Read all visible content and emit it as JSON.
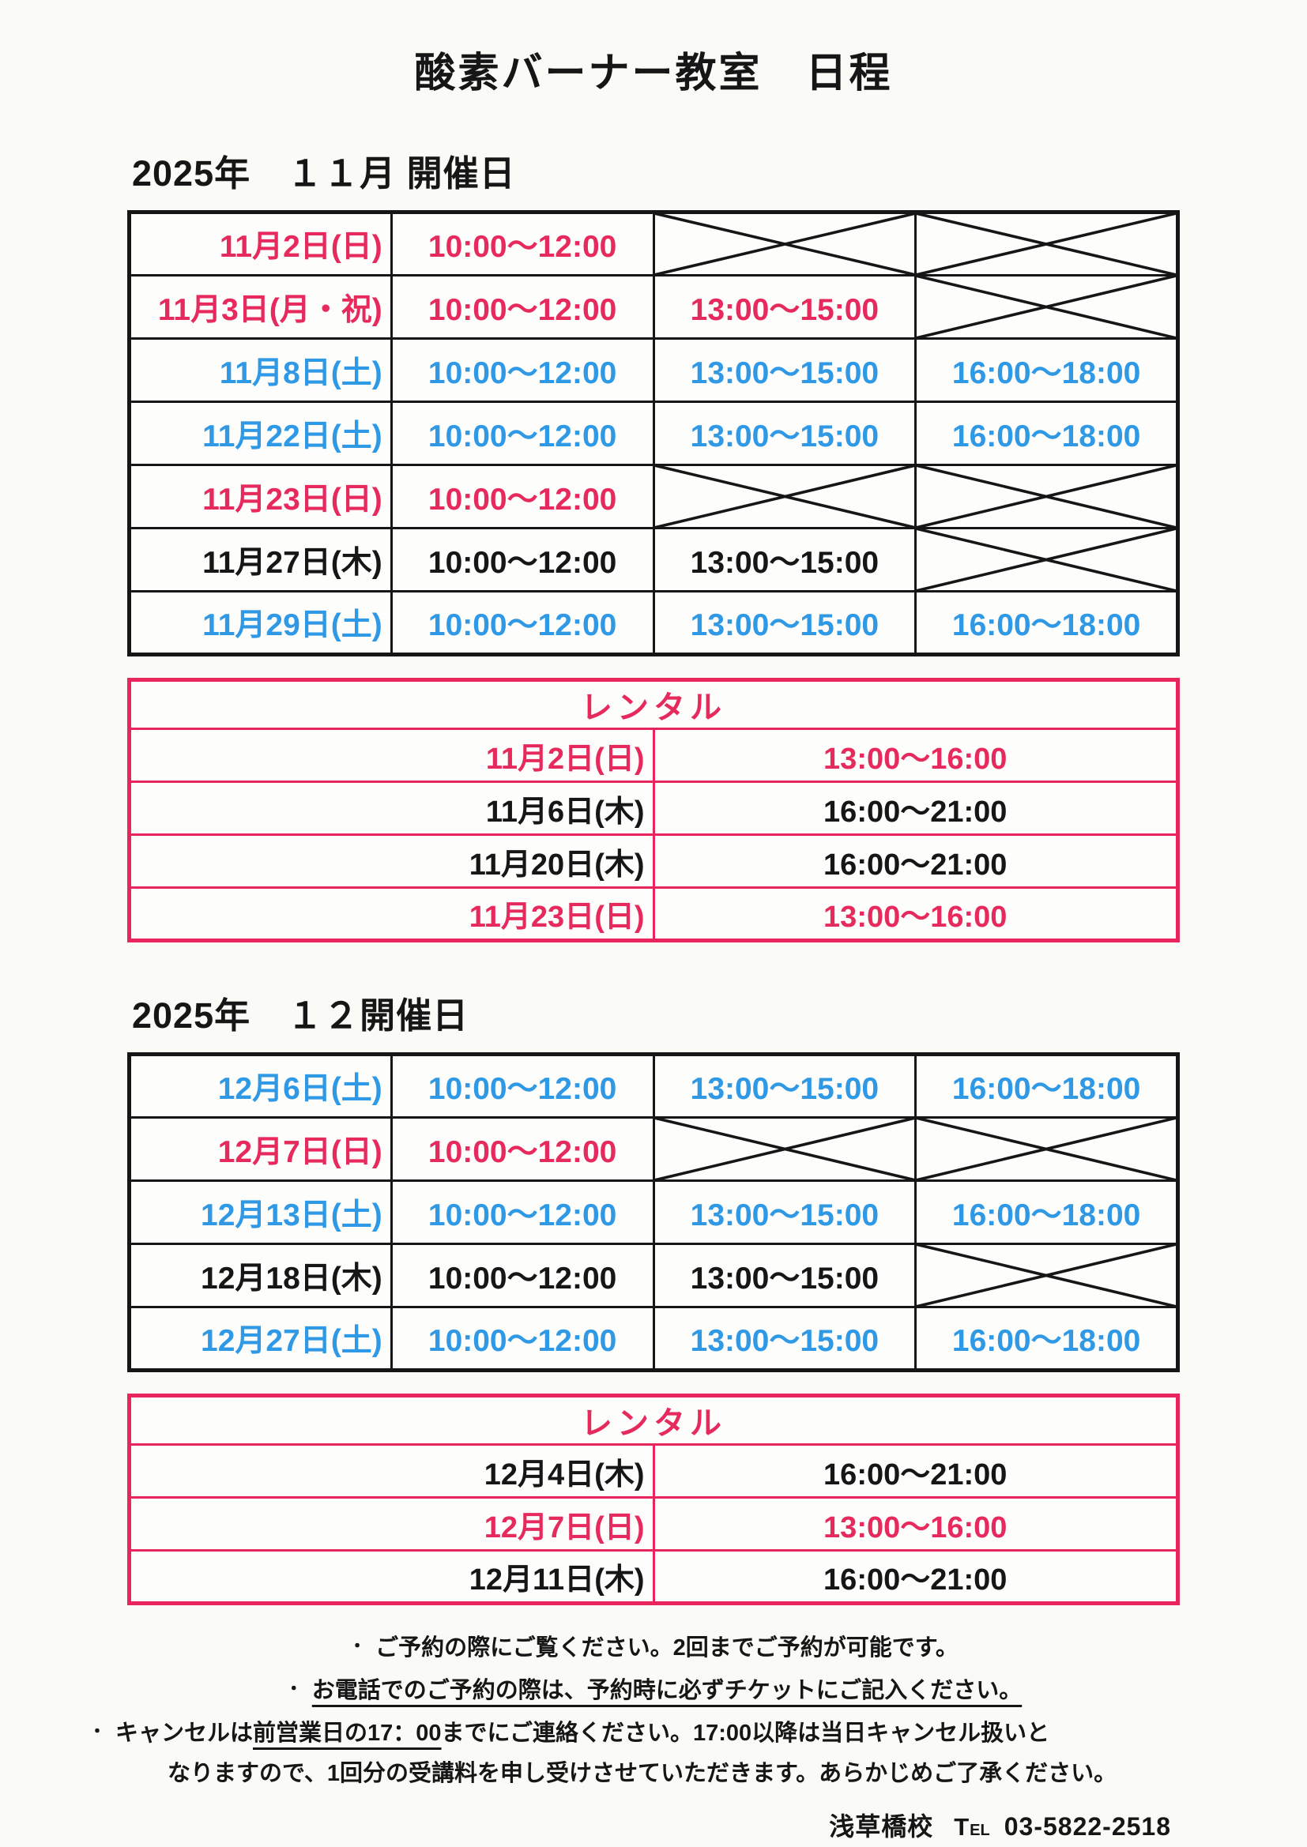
{
  "title": "酸素バーナー教室　日程",
  "colors": {
    "pink": "#e72a5e",
    "blue": "#2f99e5",
    "black": "#161616",
    "rental_border": "#e8255c"
  },
  "sections": [
    {
      "heading": "2025年　１１月 開催日",
      "schedule_rows": [
        {
          "date": "11月2日(日)",
          "color": "pink",
          "slots": [
            {
              "type": "time",
              "text": "10:00～12:00",
              "color": "pink"
            },
            {
              "type": "cross"
            },
            {
              "type": "cross"
            }
          ]
        },
        {
          "date": "11月3日(月・祝)",
          "color": "pink",
          "slots": [
            {
              "type": "time",
              "text": "10:00～12:00",
              "color": "pink"
            },
            {
              "type": "time",
              "text": "13:00～15:00",
              "color": "pink"
            },
            {
              "type": "cross"
            }
          ]
        },
        {
          "date": "11月8日(土)",
          "color": "blue",
          "slots": [
            {
              "type": "time",
              "text": "10:00～12:00",
              "color": "blue"
            },
            {
              "type": "time",
              "text": "13:00～15:00",
              "color": "blue"
            },
            {
              "type": "time",
              "text": "16:00～18:00",
              "color": "blue"
            }
          ]
        },
        {
          "date": "11月22日(土)",
          "color": "blue",
          "slots": [
            {
              "type": "time",
              "text": "10:00～12:00",
              "color": "blue"
            },
            {
              "type": "time",
              "text": "13:00～15:00",
              "color": "blue"
            },
            {
              "type": "time",
              "text": "16:00～18:00",
              "color": "blue"
            }
          ]
        },
        {
          "date": "11月23日(日)",
          "color": "pink",
          "slots": [
            {
              "type": "time",
              "text": "10:00～12:00",
              "color": "pink"
            },
            {
              "type": "cross"
            },
            {
              "type": "cross"
            }
          ]
        },
        {
          "date": "11月27日(木)",
          "color": "black",
          "slots": [
            {
              "type": "time",
              "text": "10:00～12:00",
              "color": "black"
            },
            {
              "type": "time",
              "text": "13:00～15:00",
              "color": "black"
            },
            {
              "type": "cross"
            }
          ]
        },
        {
          "date": "11月29日(土)",
          "color": "blue",
          "slots": [
            {
              "type": "time",
              "text": "10:00～12:00",
              "color": "blue"
            },
            {
              "type": "time",
              "text": "13:00～15:00",
              "color": "blue"
            },
            {
              "type": "time",
              "text": "16:00～18:00",
              "color": "blue"
            }
          ]
        }
      ],
      "rental": {
        "title": "レンタル",
        "rows": [
          {
            "date": "11月2日(日)",
            "time": "13:00～16:00",
            "color": "pink"
          },
          {
            "date": "11月6日(木)",
            "time": "16:00～21:00",
            "color": "black"
          },
          {
            "date": "11月20日(木)",
            "time": "16:00～21:00",
            "color": "black"
          },
          {
            "date": "11月23日(日)",
            "time": "13:00～16:00",
            "color": "pink"
          }
        ]
      }
    },
    {
      "heading": "2025年　１２開催日",
      "schedule_rows": [
        {
          "date": "12月6日(土)",
          "color": "blue",
          "slots": [
            {
              "type": "time",
              "text": "10:00～12:00",
              "color": "blue"
            },
            {
              "type": "time",
              "text": "13:00～15:00",
              "color": "blue"
            },
            {
              "type": "time",
              "text": "16:00～18:00",
              "color": "blue"
            }
          ]
        },
        {
          "date": "12月7日(日)",
          "color": "pink",
          "slots": [
            {
              "type": "time",
              "text": "10:00～12:00",
              "color": "pink"
            },
            {
              "type": "cross"
            },
            {
              "type": "cross"
            }
          ]
        },
        {
          "date": "12月13日(土)",
          "color": "blue",
          "slots": [
            {
              "type": "time",
              "text": "10:00～12:00",
              "color": "blue"
            },
            {
              "type": "time",
              "text": "13:00～15:00",
              "color": "blue"
            },
            {
              "type": "time",
              "text": "16:00～18:00",
              "color": "blue"
            }
          ]
        },
        {
          "date": "12月18日(木)",
          "color": "black",
          "slots": [
            {
              "type": "time",
              "text": "10:00～12:00",
              "color": "black"
            },
            {
              "type": "time",
              "text": "13:00～15:00",
              "color": "black"
            },
            {
              "type": "cross"
            }
          ]
        },
        {
          "date": "12月27日(土)",
          "color": "blue",
          "slots": [
            {
              "type": "time",
              "text": "10:00～12:00",
              "color": "blue"
            },
            {
              "type": "time",
              "text": "13:00～15:00",
              "color": "blue"
            },
            {
              "type": "time",
              "text": "16:00～18:00",
              "color": "blue"
            }
          ]
        }
      ],
      "rental": {
        "title": "レンタル",
        "rows": [
          {
            "date": "12月4日(木)",
            "time": "16:00～21:00",
            "color": "black"
          },
          {
            "date": "12月7日(日)",
            "time": "13:00～16:00",
            "color": "pink"
          },
          {
            "date": "12月11日(木)",
            "time": "16:00～21:00",
            "color": "black"
          }
        ]
      }
    }
  ],
  "notes": [
    {
      "layout": "center",
      "bullet": "・",
      "segments": [
        {
          "text": "ご予約の際にご覧ください。2回までご予約が可能です。",
          "underline": false
        }
      ]
    },
    {
      "layout": "center",
      "bullet": "・",
      "segments": [
        {
          "text": "お電話でのご予約の際は、予約時に必ずチケットにご記入ください。",
          "underline": true
        }
      ]
    },
    {
      "layout": "left",
      "bullet": "・",
      "segments": [
        {
          "text": "キャンセルは",
          "underline": false
        },
        {
          "text": "前営業日の17：00",
          "underline": true
        },
        {
          "text": "までにご連絡ください。17:00以降は当日キャンセル扱いと",
          "underline": false
        }
      ]
    },
    {
      "layout": "left-indent",
      "bullet": "",
      "segments": [
        {
          "text": "なりますので、1回分の受講料を申し受けさせていただきます。あらかじめご了承ください。",
          "underline": false
        }
      ]
    }
  ],
  "footer": {
    "school": "浅草橋校",
    "tel_label": "TEL",
    "phone": "03-5822-2518"
  }
}
